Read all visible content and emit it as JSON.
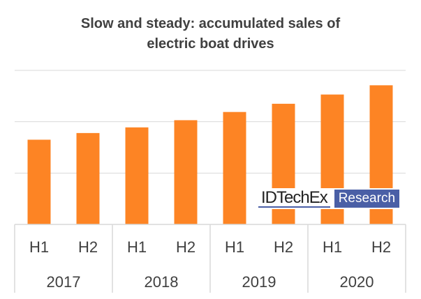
{
  "chart_data": {
    "type": "bar",
    "title": "Slow and steady: accumulated sales of electric boat drives",
    "title_lines": [
      "Slow and steady: accumulated sales of",
      "electric boat drives"
    ],
    "categories": [
      "H1",
      "H2",
      "H1",
      "H2",
      "H1",
      "H2",
      "H1",
      "H2"
    ],
    "groups": [
      "2017",
      "2018",
      "2019",
      "2020"
    ],
    "values": [
      1.65,
      1.78,
      1.89,
      2.03,
      2.19,
      2.35,
      2.53,
      2.71
    ],
    "ylim": [
      0,
      3
    ],
    "y_tick_labels_shown": false,
    "grid": true,
    "xlabel": "",
    "ylabel": "",
    "bar_color": "#fd8424",
    "grid_color": "#d9d9d9",
    "text_color": "#404040"
  },
  "logo": {
    "brand": "IDTechEx",
    "suffix": "Research",
    "color": "#4a5fa6"
  }
}
